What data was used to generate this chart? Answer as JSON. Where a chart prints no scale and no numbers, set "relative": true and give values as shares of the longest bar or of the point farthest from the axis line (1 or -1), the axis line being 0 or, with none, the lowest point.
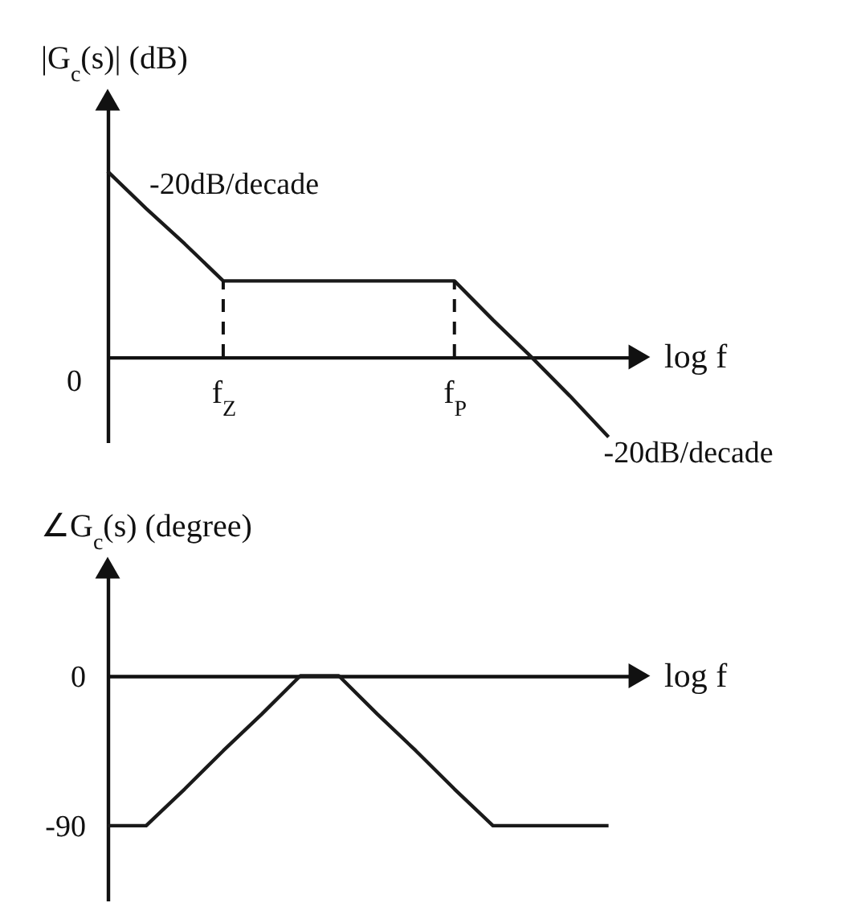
{
  "chart_data": [
    {
      "type": "line",
      "ylabel": "|G$_{c}$(s)| (dB)",
      "xlabel": "log f",
      "relative": true,
      "categories": [
        null,
        null,
        null,
        "f$_{Z}$",
        null,
        null,
        null,
        null,
        null,
        "f$_{P}$",
        null,
        null,
        null,
        null
      ],
      "series": [
        {
          "color": "#1a1a1a",
          "values": [
            1,
            0.8,
            0.61,
            0.41,
            0.41,
            0.41,
            0.41,
            0.41,
            0.41,
            0.41,
            0.2,
            0,
            -0.21,
            -0.43
          ]
        }
      ],
      "ref_lines": [
        {
          "axis": "x",
          "value": "f$_{Z}$",
          "label": null,
          "line_style": "dashed"
        },
        {
          "axis": "x",
          "value": "f$_{P}$",
          "label": null,
          "line_style": "dashed"
        }
      ],
      "annotations": [
        "0",
        "-20dB/decade",
        "-20dB/decade"
      ]
    },
    {
      "type": "line",
      "ylabel": "∠G$_{c}$(s) (degree)",
      "xlabel": "log f",
      "categories": [
        null,
        null,
        null,
        null,
        null,
        null,
        null,
        null,
        null,
        null,
        null,
        null,
        null,
        null
      ],
      "series": [
        {
          "color": "#1a1a1a",
          "values": [
            -90,
            -90,
            -68,
            -45,
            -23,
            0,
            0,
            -23,
            -45,
            -68,
            -90,
            -90,
            -90,
            -90
          ]
        }
      ],
      "ylim": [
        -135,
        65
      ],
      "yticks": [
        0,
        -90
      ]
    }
  ]
}
